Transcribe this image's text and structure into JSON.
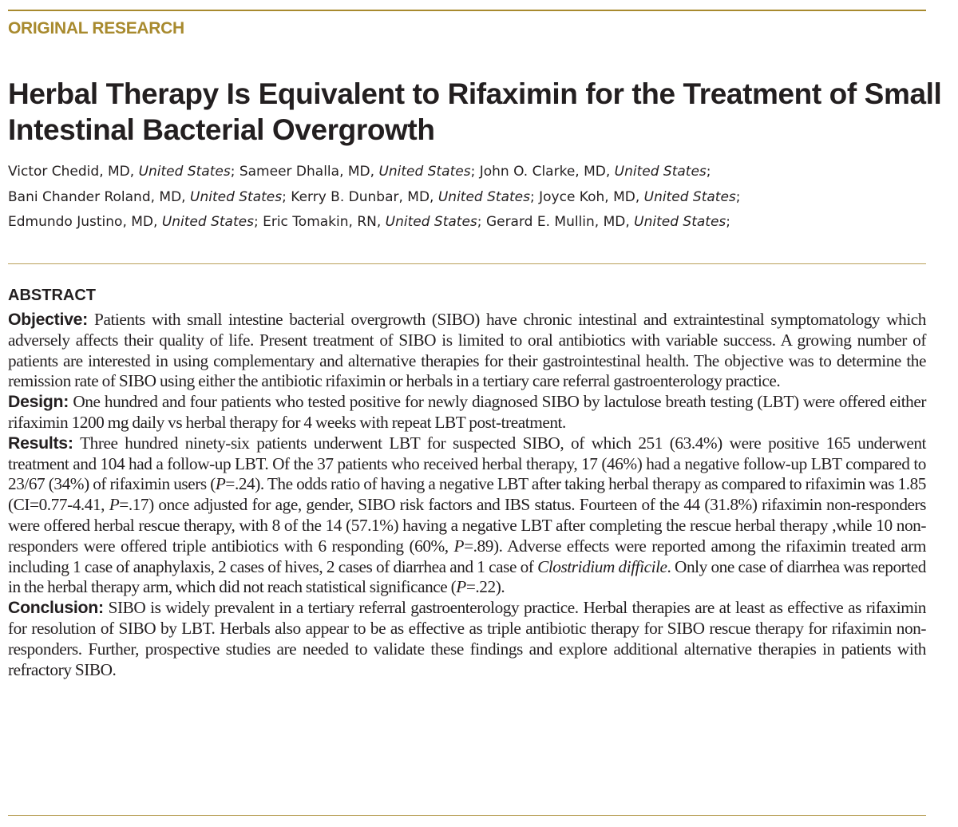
{
  "header": {
    "section_label": "ORIGINAL RESEARCH",
    "title": "Herbal Therapy Is Equivalent to Rifaximin for the Treatment of Small Intestinal Bacterial Overgrowth",
    "accent_color": "#a88a2e"
  },
  "authors": {
    "lines": [
      [
        {
          "name": "Victor Chedid, MD",
          "country": "United States"
        },
        {
          "name": "Sameer Dhalla, MD",
          "country": "United States"
        },
        {
          "name": "John O. Clarke, MD",
          "country": "United States"
        }
      ],
      [
        {
          "name": "Bani Chander Roland, MD",
          "country": "United States"
        },
        {
          "name": "Kerry B. Dunbar, MD",
          "country": "United States"
        },
        {
          "name": "Joyce Koh, MD",
          "country": "United States"
        }
      ],
      [
        {
          "name": "Edmundo Justino, MD",
          "country": "United States"
        },
        {
          "name": "Eric Tomakin, RN",
          "country": "United States"
        },
        {
          "name": "Gerard E. Mullin, MD",
          "country": "United States"
        }
      ]
    ]
  },
  "abstract": {
    "heading": "ABSTRACT",
    "sections": [
      {
        "label": "Objective:",
        "parts": [
          {
            "text": " Patients with small intestine bacterial overgrowth (SIBO) have chronic intestinal and extraintestinal symptomatology which adversely affects their quality of life. Present treatment of SIBO is limited to oral antibiotics with variable success. A growing number of patients are interested in using complementary and alternative therapies for their gastrointestinal health. The objective was to determine the remission rate of SIBO using either the antibiotic rifaximin or herbals in a tertiary care referral gastroenterology practice."
          }
        ]
      },
      {
        "label": "Design:",
        "parts": [
          {
            "text": " One hundred and four patients who tested positive for newly diagnosed SIBO by lactulose breath testing (LBT) were offered either rifaximin 1200 mg daily vs herbal therapy for 4 weeks with repeat LBT post-treatment."
          }
        ]
      },
      {
        "label": "Results:",
        "parts": [
          {
            "text": " Three hundred ninety-six patients underwent LBT for suspected SIBO, of which 251 (63.4%) were positive 165 underwent treatment and 104 had a follow-up LBT. Of the 37 patients who received herbal therapy, 17 (46%) had a negative follow-up LBT compared to 23/67 (34%) of rifaximin users ("
          },
          {
            "text": "P",
            "italic": true
          },
          {
            "text": "=.24). The odds ratio of having a negative LBT after taking herbal therapy as compared to rifaximin was 1.85 (CI=0.77-4.41, "
          },
          {
            "text": "P",
            "italic": true
          },
          {
            "text": "=.17) once adjusted for age, gender, SIBO risk factors and IBS status. Fourteen of the 44 (31.8%) rifaximin non-responders were offered herbal rescue therapy, with 8 of the 14 (57.1%) having a negative LBT after completing the rescue herbal therapy ,while 10 non-responders were offered triple antibiotics with 6 responding (60%, "
          },
          {
            "text": "P",
            "italic": true
          },
          {
            "text": "=.89). Adverse effects were reported among the rifaximin treated arm including 1 case of anaphylaxis, 2 cases of hives, 2 cases of diarrhea and 1 case of "
          },
          {
            "text": "Clostridium difficile",
            "italic": true
          },
          {
            "text": ". Only one case of diarrhea was reported in the herbal therapy arm, which did not reach statistical significance ("
          },
          {
            "text": "P",
            "italic": true
          },
          {
            "text": "=.22)."
          }
        ]
      },
      {
        "label": "Conclusion:",
        "parts": [
          {
            "text": " SIBO is widely prevalent in a tertiary referral gastroenterology practice. Herbal therapies are at least as effective as rifaximin for resolution of SIBO by LBT. Herbals also appear to be as effective as triple antibiotic therapy for SIBO rescue therapy for rifaximin non-responders. Further, prospective studies are needed to validate these findings and explore additional alternative therapies in patients with refractory SIBO."
          }
        ]
      }
    ]
  }
}
